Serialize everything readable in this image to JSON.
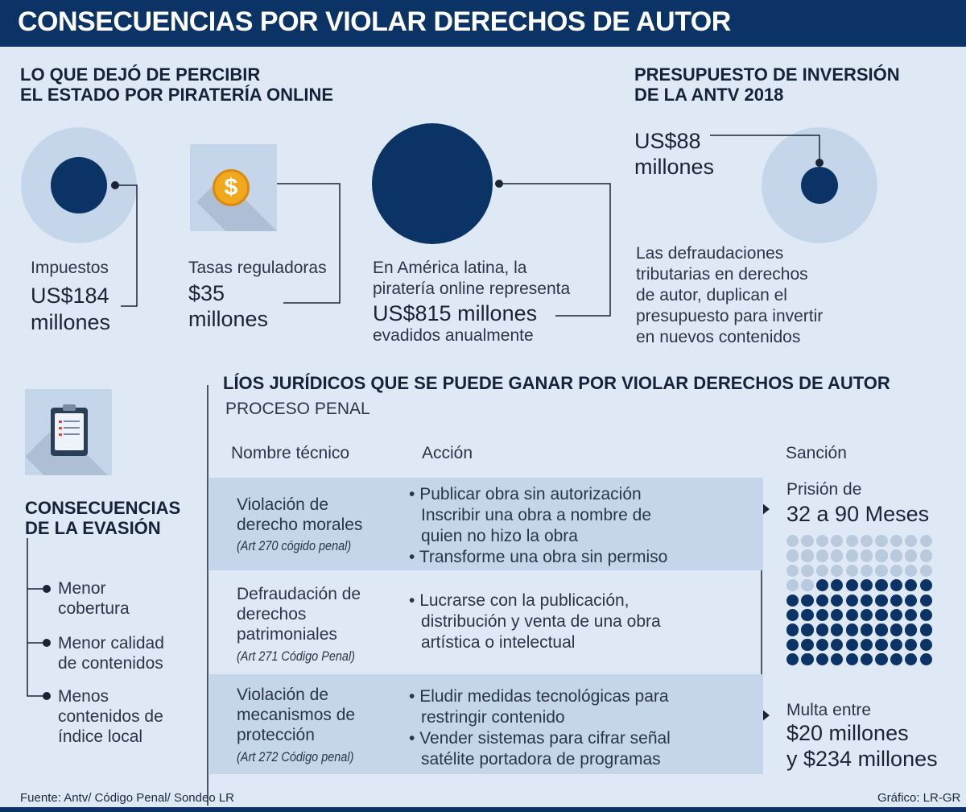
{
  "header": {
    "title": "CONSECUENCIAS POR VIOLAR DERECHOS DE AUTOR"
  },
  "revenue_lost": {
    "title_line1": "LO QUE DEJÓ DE PERCIBIR",
    "title_line2": "EL ESTADO POR PIRATERÍA ONLINE",
    "impuestos": {
      "label": "Impuestos",
      "amount": "US$184",
      "unit": "millones"
    },
    "tasas": {
      "label": "Tasas reguladoras",
      "amount": "$35",
      "unit": "millones"
    },
    "latam": {
      "line1": "En América latina, la",
      "line2": "piratería online representa",
      "amount": "US$815 millones",
      "line3": "evadidos  anualmente"
    }
  },
  "budget": {
    "title_line1": "PRESUPUESTO DE INVERSIÓN",
    "title_line2": "DE LA ANTV 2018",
    "amount": "US$88",
    "unit": "millones",
    "desc": [
      "Las defraudaciones",
      "tributarias en derechos",
      "de autor, duplican el",
      "presupuesto para invertir",
      "en nuevos contenidos"
    ]
  },
  "evasion": {
    "title_line1": "CONSECUENCIAS",
    "title_line2": "DE LA EVASIÓN",
    "items": [
      [
        "Menor",
        "cobertura"
      ],
      [
        "Menor calidad",
        "de contenidos"
      ],
      [
        "Menos",
        "contenidos de",
        "índice local"
      ]
    ]
  },
  "legal": {
    "title": "LÍOS JURÍDICOS QUE SE PUEDE GANAR POR VIOLAR DERECHOS DE AUTOR",
    "subtitle": "PROCESO PENAL",
    "col_name": "Nombre técnico",
    "col_action": "Acción",
    "col_sanction": "Sanción",
    "rows": [
      {
        "name": [
          "Violación de",
          "derecho morales"
        ],
        "article": "(Art 270 cógido penal)",
        "actions": [
          [
            "Publicar obra sin autorización",
            "Inscribir una obra a nombre de",
            "quien no hizo la obra"
          ],
          [
            "Transforme una obra sin permiso"
          ]
        ]
      },
      {
        "name": [
          "Defraudación de",
          "derechos",
          "patrimoniales"
        ],
        "article": "(Art 271 Código Penal)",
        "actions": [
          [
            "Lucrarse con la publicación,",
            "distribución y venta de una obra",
            "artística o intelectual"
          ]
        ]
      },
      {
        "name": [
          "Violación de",
          "mecanismos de",
          "protección"
        ],
        "article": "(Art 272 Código penal)",
        "actions": [
          [
            "Eludir medidas tecnológicas para",
            "restringir contenido"
          ],
          [
            "Vender sistemas para cifrar señal",
            "satélite portadora de programas"
          ]
        ]
      }
    ],
    "prison_label": "Prisión de",
    "prison_value": "32 a 90 Meses",
    "fine_label": "Multa entre",
    "fine_line1": "$20 millones",
    "fine_line2": "y $234 millones",
    "dots": {
      "total": 90,
      "light": 32
    }
  },
  "footer": {
    "source": "Fuente: Antv/ Código Penal/ Sondeo LR",
    "credit": "Gráfico: LR-GR"
  },
  "colors": {
    "navy": "#0c3366",
    "light_circle": "#c5d6ea",
    "background": "#dfe9f5",
    "coin": "#f2a81d"
  }
}
